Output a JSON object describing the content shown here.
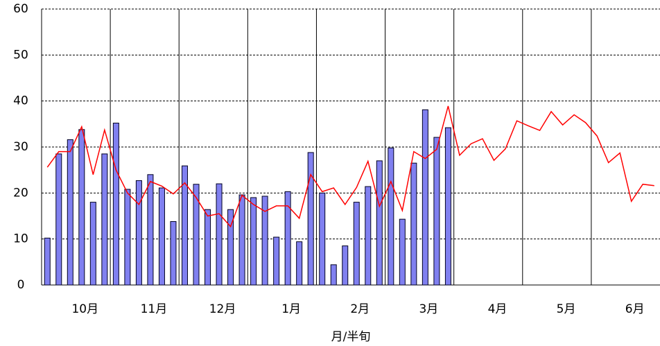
{
  "chart_data": {
    "type": "bar",
    "x_label": "月/半旬",
    "categories": [
      null,
      null,
      null,
      "10月",
      null,
      null,
      null,
      null,
      null,
      "11月",
      null,
      null,
      null,
      null,
      null,
      "12月",
      null,
      null,
      null,
      null,
      null,
      "1月",
      null,
      null,
      null,
      null,
      null,
      "2月",
      null,
      null,
      null,
      null,
      null,
      "3月",
      null,
      null,
      null,
      null,
      null,
      "4月",
      null,
      null,
      null,
      null,
      null,
      "5月",
      null,
      null,
      null,
      null,
      null,
      "6月",
      null,
      null
    ],
    "series": [
      {
        "type": "bar",
        "color": "#8080f0",
        "values": [
          10.2,
          28.5,
          31.6,
          33.8,
          18,
          28.5,
          35.2,
          20.8,
          22.7,
          24,
          21.1,
          13.8,
          25.9,
          21.9,
          16.4,
          22,
          16.4,
          19.6,
          19,
          19.3,
          10.4,
          20.3,
          9.4,
          28.8,
          20,
          4.4,
          8.5,
          18,
          21.4,
          27,
          29.8,
          14.3,
          26.5,
          38.1,
          32.1,
          34.2,
          null,
          null,
          null,
          null,
          null,
          null,
          null,
          null,
          null,
          null,
          null,
          null,
          null,
          null,
          null,
          null,
          null,
          null
        ]
      },
      {
        "type": "line",
        "color": "#ff0000",
        "values": [
          25.6,
          29,
          29,
          34.4,
          24,
          33.7,
          25,
          20,
          17.5,
          22.5,
          21.5,
          19.8,
          22.2,
          19,
          15,
          15.5,
          12.7,
          19.5,
          17.5,
          16,
          17.2,
          17.2,
          14.5,
          24,
          20.3,
          21.1,
          17.5,
          21.2,
          26.9,
          17.1,
          22.5,
          16.2,
          29,
          27.5,
          29.5,
          38.9,
          28.2,
          30.7,
          31.8,
          27.1,
          29.6,
          35.7,
          34.6,
          33.6,
          37.7,
          34.8,
          37,
          35.3,
          32.4,
          26.6,
          28.7,
          18.2,
          21.9,
          21.6
        ]
      }
    ],
    "ylim": [
      0,
      60
    ],
    "yticks": [
      0,
      10,
      20,
      30,
      40,
      50,
      60
    ],
    "grid": true
  }
}
